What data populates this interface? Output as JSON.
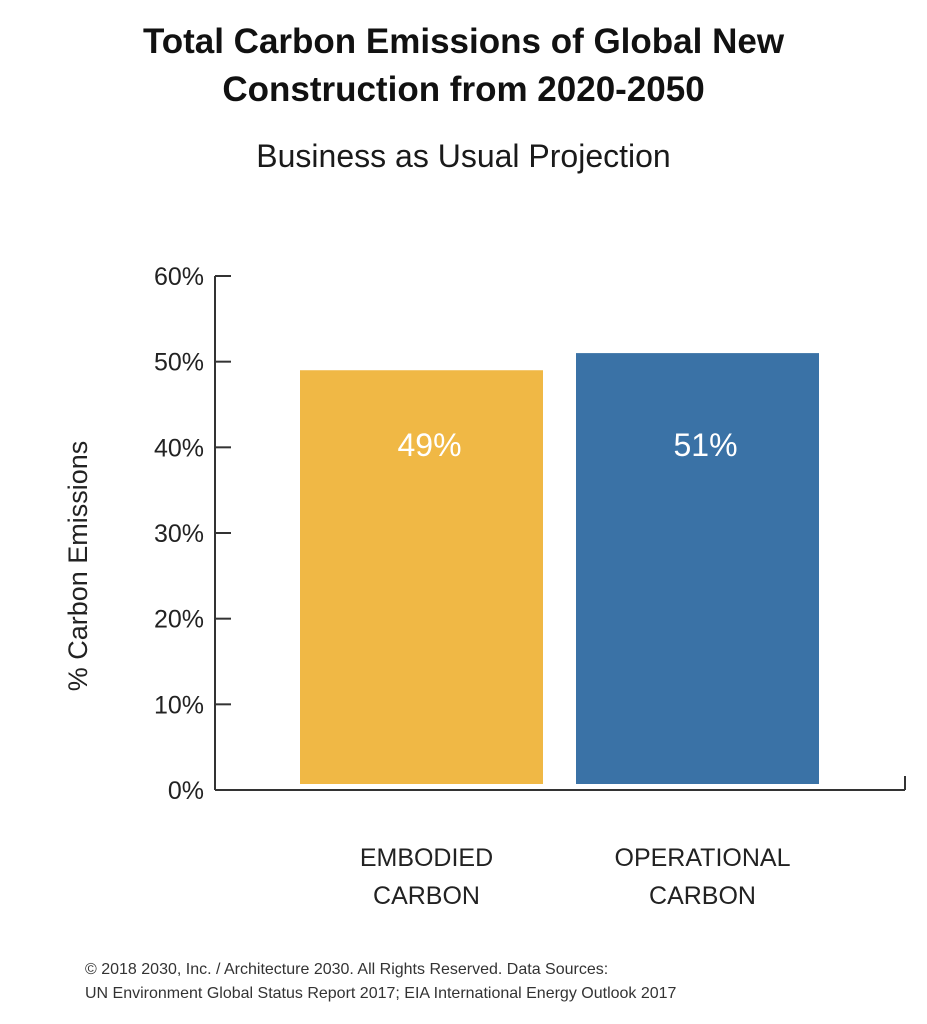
{
  "chart_data": {
    "type": "bar",
    "title_lines": [
      "Total Carbon Emissions of Global New",
      "Construction from 2020-2050"
    ],
    "subtitle": "Business as Usual Projection",
    "ylabel": "% Carbon Emissions",
    "xlabel": "",
    "ylim": [
      0,
      60
    ],
    "yticks": [
      0,
      10,
      20,
      30,
      40,
      50,
      60
    ],
    "ytick_labels": [
      "0%",
      "10%",
      "20%",
      "30%",
      "40%",
      "50%",
      "60%"
    ],
    "grid": false,
    "categories": [
      [
        "EMBODIED",
        "CARBON"
      ],
      [
        "OPERATIONAL",
        "CARBON"
      ]
    ],
    "values": [
      49,
      51
    ],
    "data_labels": [
      "49%",
      "51%"
    ],
    "colors": [
      "#F0B845",
      "#3A72A6"
    ]
  },
  "footer": {
    "line1": "© 2018 2030, Inc. / Architecture 2030. All Rights Reserved. Data Sources:",
    "line2": "UN Environment Global Status Report 2017; EIA International Energy Outlook 2017"
  }
}
